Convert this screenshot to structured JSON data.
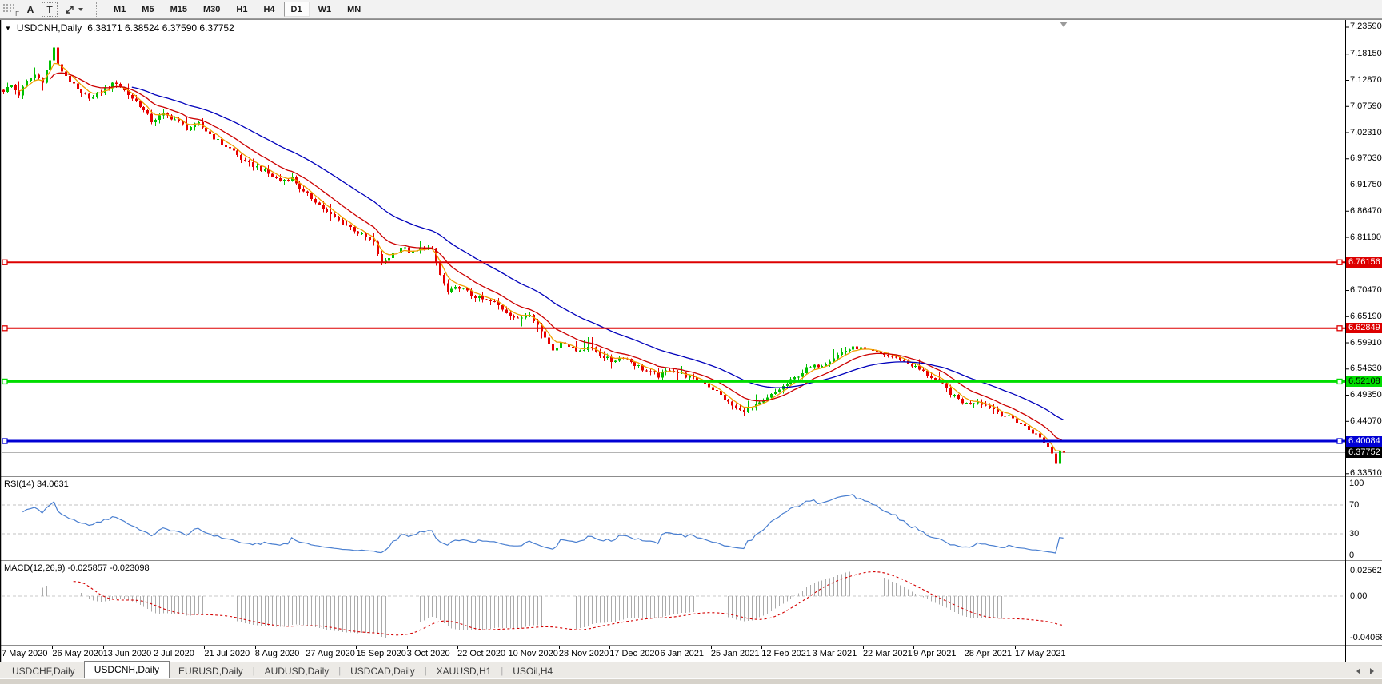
{
  "toolbar": {
    "drag_handle_label": "F",
    "tools": [
      {
        "id": "annotate",
        "label": "A"
      },
      {
        "id": "text",
        "label": "T"
      },
      {
        "id": "cursor",
        "label": ""
      }
    ],
    "timeframes": [
      "M1",
      "M5",
      "M15",
      "M30",
      "H1",
      "H4",
      "D1",
      "W1",
      "MN"
    ],
    "active_timeframe": "D1"
  },
  "chart": {
    "title_symbol": "USDCNH,Daily",
    "title_ohlc": "6.38171 6.38524 6.37590 6.37752",
    "price_ticks": [
      "7.23590",
      "7.18150",
      "7.12870",
      "7.07590",
      "7.02310",
      "6.97030",
      "6.91750",
      "6.86470",
      "6.81190",
      "6.75910",
      "6.70470",
      "6.65190",
      "6.59910",
      "6.54630",
      "6.49350",
      "6.44070",
      "6.38790",
      "6.33510"
    ],
    "hlines": [
      {
        "value": 6.76156,
        "label": "6.76156",
        "color": "#dd0000",
        "badge_text": "#ffffff",
        "width": 2
      },
      {
        "value": 6.62849,
        "label": "6.62849",
        "color": "#dd0000",
        "badge_text": "#ffffff",
        "width": 2
      },
      {
        "value": 6.52108,
        "label": "6.52108",
        "color": "#00dd00",
        "badge_text": "#000000",
        "width": 3
      },
      {
        "value": 6.40084,
        "label": "6.40084",
        "color": "#0000d4",
        "badge_text": "#ffffff",
        "width": 3
      }
    ],
    "current_price": {
      "value": 6.37752,
      "label": "6.37752",
      "badge_bg": "#000000",
      "badge_text": "#ffffff",
      "line_color": "#b4b4b4"
    },
    "date_labels": [
      "7 May 2020",
      "26 May 2020",
      "13 Jun 2020",
      "2 Jul 2020",
      "21 Jul 2020",
      "8 Aug 2020",
      "27 Aug 2020",
      "15 Sep 2020",
      "3 Oct 2020",
      "22 Oct 2020",
      "10 Nov 2020",
      "28 Nov 2020",
      "17 Dec 2020",
      "6 Jan 2021",
      "25 Jan 2021",
      "12 Feb 2021",
      "3 Mar 2021",
      "22 Mar 2021",
      "9 Apr 2021",
      "28 Apr 2021",
      "17 May 2021"
    ]
  },
  "indicators": {
    "rsi": {
      "label": "RSI(14) 34.0631",
      "name": "RSI",
      "params": "14",
      "current": 34.0631,
      "levels": [
        70,
        30
      ],
      "axis_values": [
        100,
        70,
        30,
        0
      ],
      "axis_labels": [
        "100",
        "70",
        "30",
        "0"
      ],
      "line_color": "#4a7fd0"
    },
    "macd": {
      "label": "MACD(12,26,9) -0.025857 -0.023098",
      "name": "MACD",
      "params": "12,26,9",
      "current_main": -0.025857,
      "current_signal": -0.023098,
      "axis_values": [
        0.025623,
        0,
        -0.040687
      ],
      "axis_labels": [
        "0.025623",
        "0.00",
        "-0.040687"
      ],
      "histogram_color": "#ababab",
      "signal_color": "#d40000"
    }
  },
  "chart_data": {
    "type": "candlestick",
    "symbol": "USDCNH",
    "period": "Daily",
    "bars": 273,
    "price_axis_range": [
      6.3299,
      7.2504
    ],
    "last_candle": {
      "open": 6.38171,
      "high": 6.38524,
      "low": 6.3759,
      "close": 6.37752
    },
    "up_color": "#00c000",
    "down_color": "#e60000",
    "close_anchors": [
      [
        0,
        7.108
      ],
      [
        2,
        7.118
      ],
      [
        4,
        7.1
      ],
      [
        6,
        7.126
      ],
      [
        8,
        7.14
      ],
      [
        10,
        7.128
      ],
      [
        12,
        7.168
      ],
      [
        13,
        7.196
      ],
      [
        14,
        7.158
      ],
      [
        16,
        7.138
      ],
      [
        18,
        7.118
      ],
      [
        20,
        7.1
      ],
      [
        23,
        7.094
      ],
      [
        26,
        7.112
      ],
      [
        29,
        7.124
      ],
      [
        32,
        7.1
      ],
      [
        35,
        7.078
      ],
      [
        38,
        7.046
      ],
      [
        41,
        7.06
      ],
      [
        44,
        7.05
      ],
      [
        47,
        7.032
      ],
      [
        50,
        7.04
      ],
      [
        53,
        7.02
      ],
      [
        56,
        7.0
      ],
      [
        59,
        6.986
      ],
      [
        62,
        6.962
      ],
      [
        65,
        6.954
      ],
      [
        68,
        6.94
      ],
      [
        71,
        6.926
      ],
      [
        74,
        6.932
      ],
      [
        77,
        6.902
      ],
      [
        80,
        6.886
      ],
      [
        83,
        6.862
      ],
      [
        86,
        6.846
      ],
      [
        89,
        6.832
      ],
      [
        92,
        6.816
      ],
      [
        95,
        6.8
      ],
      [
        97,
        6.758
      ],
      [
        99,
        6.772
      ],
      [
        102,
        6.792
      ],
      [
        105,
        6.78
      ],
      [
        108,
        6.792
      ],
      [
        110,
        6.786
      ],
      [
        112,
        6.736
      ],
      [
        114,
        6.7
      ],
      [
        117,
        6.712
      ],
      [
        120,
        6.696
      ],
      [
        123,
        6.686
      ],
      [
        126,
        6.68
      ],
      [
        129,
        6.662
      ],
      [
        132,
        6.646
      ],
      [
        135,
        6.66
      ],
      [
        138,
        6.622
      ],
      [
        141,
        6.588
      ],
      [
        144,
        6.6
      ],
      [
        147,
        6.582
      ],
      [
        150,
        6.592
      ],
      [
        153,
        6.576
      ],
      [
        156,
        6.562
      ],
      [
        159,
        6.572
      ],
      [
        162,
        6.556
      ],
      [
        165,
        6.542
      ],
      [
        168,
        6.532
      ],
      [
        171,
        6.546
      ],
      [
        174,
        6.536
      ],
      [
        177,
        6.526
      ],
      [
        180,
        6.518
      ],
      [
        183,
        6.5
      ],
      [
        186,
        6.478
      ],
      [
        189,
        6.462
      ],
      [
        192,
        6.468
      ],
      [
        195,
        6.48
      ],
      [
        198,
        6.5
      ],
      [
        202,
        6.522
      ],
      [
        206,
        6.546
      ],
      [
        210,
        6.556
      ],
      [
        213,
        6.57
      ],
      [
        216,
        6.584
      ],
      [
        219,
        6.59
      ],
      [
        222,
        6.582
      ],
      [
        226,
        6.576
      ],
      [
        230,
        6.566
      ],
      [
        234,
        6.55
      ],
      [
        238,
        6.53
      ],
      [
        241,
        6.514
      ],
      [
        244,
        6.49
      ],
      [
        247,
        6.476
      ],
      [
        250,
        6.482
      ],
      [
        253,
        6.47
      ],
      [
        256,
        6.456
      ],
      [
        259,
        6.446
      ],
      [
        262,
        6.43
      ],
      [
        265,
        6.414
      ],
      [
        267,
        6.4
      ],
      [
        269,
        6.376
      ],
      [
        270,
        6.355
      ],
      [
        271,
        6.381
      ],
      [
        272,
        6.37752
      ]
    ],
    "moving_averages": [
      {
        "period": 5,
        "color": "#f0a000"
      },
      {
        "period": 13,
        "color": "#cc0000"
      },
      {
        "period": 34,
        "color": "#0000bb"
      }
    ],
    "horizontal_levels": [
      6.76156,
      6.62849,
      6.52108,
      6.40084
    ],
    "x_axis_dates": [
      "7 May 2020",
      "26 May 2020",
      "13 Jun 2020",
      "2 Jul 2020",
      "21 Jul 2020",
      "8 Aug 2020",
      "27 Aug 2020",
      "15 Sep 2020",
      "3 Oct 2020",
      "22 Oct 2020",
      "10 Nov 2020",
      "28 Nov 2020",
      "17 Dec 2020",
      "6 Jan 2021",
      "25 Jan 2021",
      "12 Feb 2021",
      "3 Mar 2021",
      "22 Mar 2021",
      "9 Apr 2021",
      "28 Apr 2021",
      "17 May 2021"
    ],
    "rsi_current": 34.0631,
    "macd_current": [
      -0.025857,
      -0.023098
    ]
  },
  "tabs": {
    "items": [
      "USDCHF,Daily",
      "USDCNH,Daily",
      "EURUSD,Daily",
      "AUDUSD,Daily",
      "USDCAD,Daily",
      "XAUUSD,H1",
      "USOil,H4"
    ],
    "active": "USDCNH,Daily"
  }
}
